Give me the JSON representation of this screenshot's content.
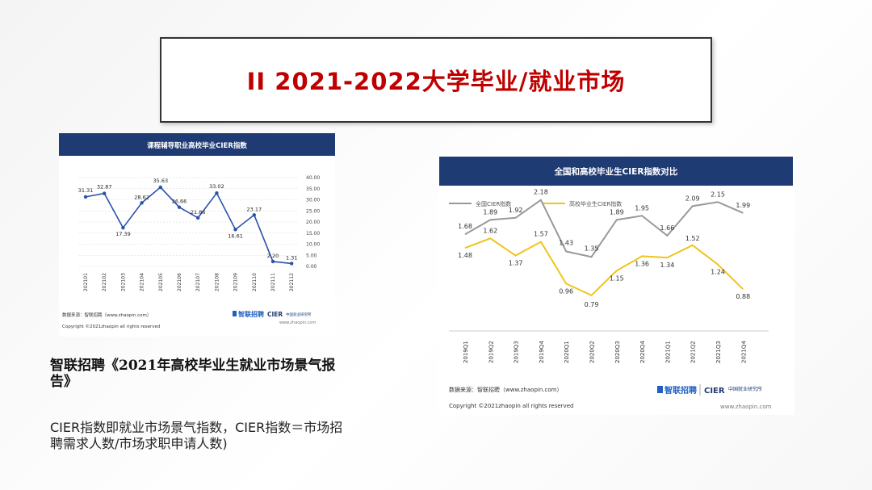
{
  "slide": {
    "title": "II 2021-2022大学毕业/就业市场",
    "caption": "智联招聘《2021年高校毕业生就业市场景气报告》",
    "description": "CIER指数即就业市场景气指数，CIER指数＝市场招聘需求人数/市场求职申请人数)"
  },
  "chart_data": [
    {
      "type": "line",
      "title": "课程辅导职业高校毕业CIER指数",
      "categories": [
        "202101",
        "202102",
        "202103",
        "202104",
        "202105",
        "202106",
        "202107",
        "202108",
        "202109",
        "202110",
        "202111",
        "202112"
      ],
      "series": [
        {
          "values": [
            31.31,
            32.87,
            17.39,
            28.62,
            35.63,
            26.66,
            21.86,
            33.02,
            16.61,
            23.17,
            2.2,
            1.31
          ]
        }
      ],
      "data_labels": [
        "31.31",
        "32.87",
        "17.39",
        "28.62",
        "35.63",
        "26.66",
        "21.86",
        "33.02",
        "16.61",
        "23.17",
        "2.20",
        "1.31"
      ],
      "y_ticks": [
        "40.00",
        "35.00",
        "30.00",
        "25.00",
        "20.00",
        "15.00",
        "10.00",
        "5.00",
        "0.00"
      ],
      "ylim": [
        0,
        40
      ],
      "grid": true,
      "y_axis_side": "right",
      "source": "数据来源：智联招聘（www.zhaopin.com）",
      "copyright": "Copyright ©2021zhaopin all rights reserved",
      "logo": "智联招聘",
      "logo2": "CIER",
      "logo2_sub": "中国就业研究所",
      "website": "www.zhaopin.com",
      "colors": {
        "header": "#1f3b73",
        "line": "#2a52a8"
      }
    },
    {
      "type": "line",
      "title": "全国和高校毕业生CIER指数对比",
      "categories": [
        "2019Q1",
        "2019Q2",
        "2019Q3",
        "2019Q4",
        "2020Q1",
        "2020Q2",
        "2020Q3",
        "2020Q4",
        "2021Q1",
        "2021Q2",
        "2021Q3",
        "2021Q4"
      ],
      "series": [
        {
          "name": "全国CIER指数",
          "color": "#999999",
          "values": [
            1.68,
            1.89,
            1.92,
            2.18,
            1.43,
            1.35,
            1.89,
            1.95,
            1.66,
            2.09,
            2.15,
            1.99
          ]
        },
        {
          "name": "高校毕业生CIER指数",
          "color": "#f0c419",
          "values": [
            1.48,
            1.62,
            1.37,
            1.57,
            0.96,
            0.79,
            1.15,
            1.36,
            1.34,
            1.52,
            1.24,
            0.88
          ]
        }
      ],
      "labels_national": [
        "1.68",
        "1.89",
        "1.92",
        "2.18",
        "1.43",
        "1.35",
        "1.89",
        "1.95",
        "1.66",
        "2.09",
        "2.15",
        "1.99"
      ],
      "labels_grad": [
        "1.48",
        "1.62",
        "1.37",
        "1.57",
        "0.96",
        "0.79",
        "1.15",
        "1.36",
        "1.34",
        "1.52",
        "1.24",
        "0.88"
      ],
      "legend_placement": "top-left",
      "source": "数据来源：智联招聘（www.zhaopin.com）",
      "copyright": "Copyright ©2021zhaopin all rights reserved",
      "logo": "智联招聘",
      "logo2": "CIER",
      "logo2_sub": "中国就业研究所",
      "website": "www.zhaopin.com",
      "colors": {
        "header": "#1f3b73"
      }
    }
  ]
}
